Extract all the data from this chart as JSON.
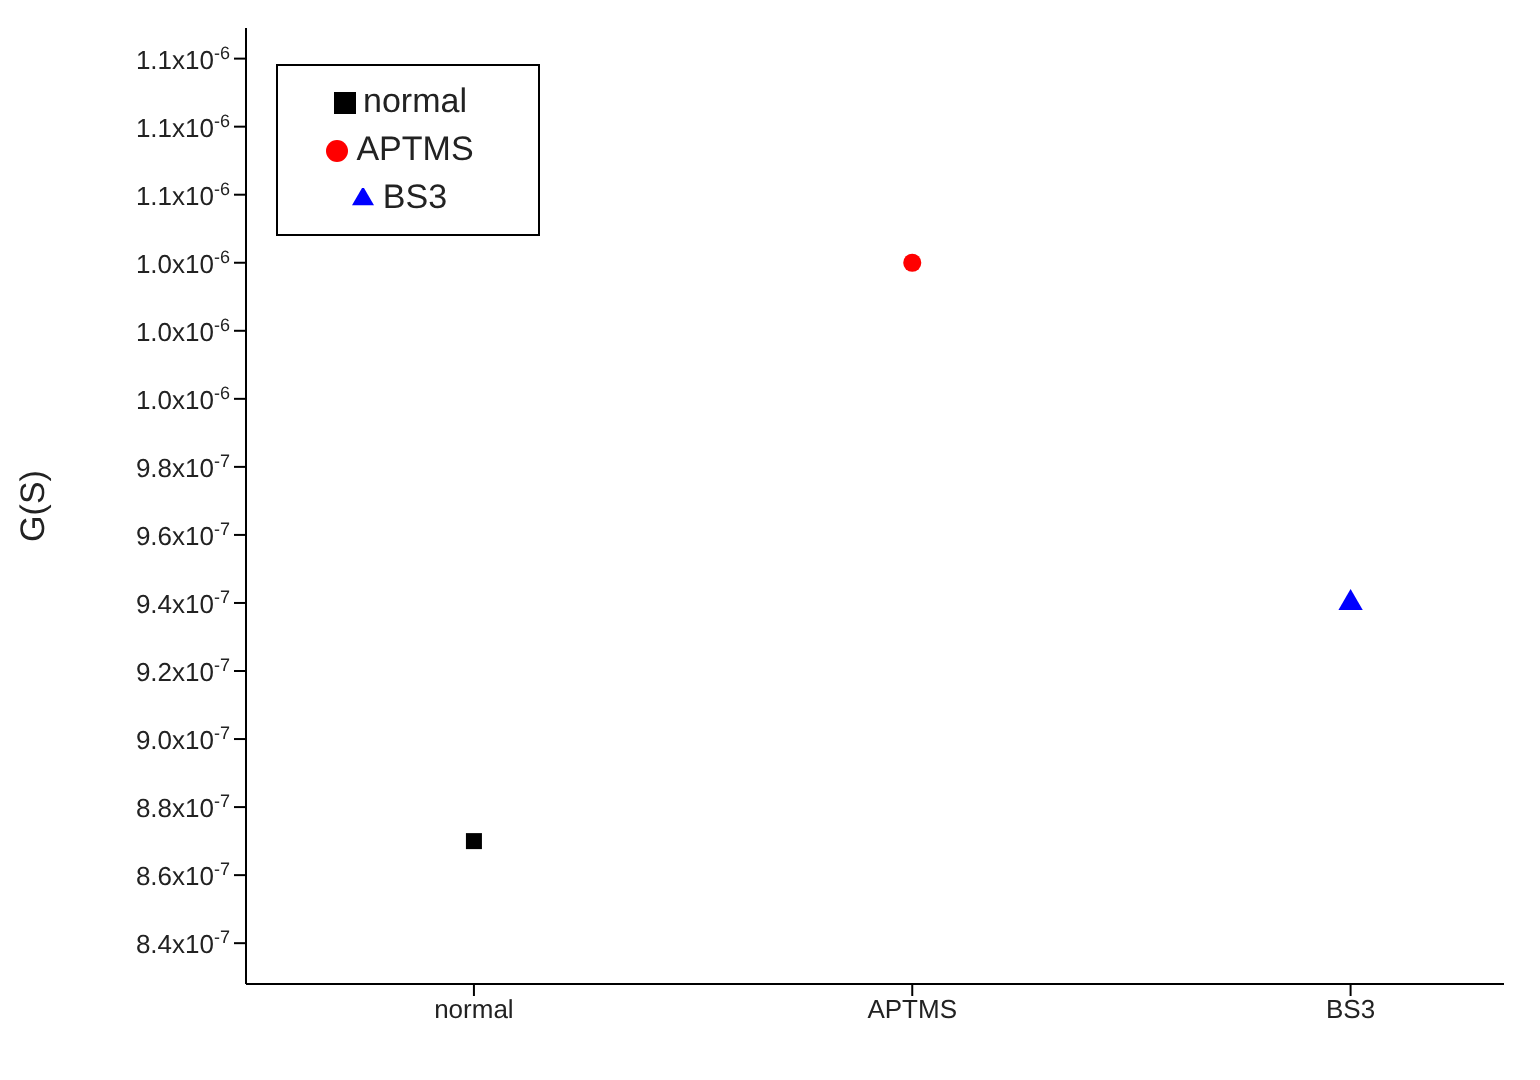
{
  "chart_data": {
    "type": "scatter",
    "ylabel": "G(S)",
    "categories": [
      "normal",
      "APTMS",
      "BS3"
    ],
    "ylim": [
      8.28e-07,
      1.109e-06
    ],
    "yticks": [
      {
        "value": 8.4e-07,
        "label": "8.4x10$^{-7}$"
      },
      {
        "value": 8.6e-07,
        "label": "8.6x10$^{-7}$"
      },
      {
        "value": 8.8e-07,
        "label": "8.8x10$^{-7}$"
      },
      {
        "value": 9e-07,
        "label": "9.0x10$^{-7}$"
      },
      {
        "value": 9.2e-07,
        "label": "9.2x10$^{-7}$"
      },
      {
        "value": 9.4e-07,
        "label": "9.4x10$^{-7}$"
      },
      {
        "value": 9.6e-07,
        "label": "9.6x10$^{-7}$"
      },
      {
        "value": 9.8e-07,
        "label": "9.8x10$^{-7}$"
      },
      {
        "value": 1e-06,
        "label": "1.0x10$^{-6}$"
      },
      {
        "value": 1.02e-06,
        "label": "1.0x10$^{-6}$"
      },
      {
        "value": 1.04e-06,
        "label": "1.0x10$^{-6}$"
      },
      {
        "value": 1.06e-06,
        "label": "1.1x10$^{-6}$"
      },
      {
        "value": 1.08e-06,
        "label": "1.1x10$^{-6}$"
      },
      {
        "value": 1.1e-06,
        "label": "1.1x10$^{-6}$"
      }
    ],
    "legend": "top left",
    "grid": false,
    "series": [
      {
        "name": "normal",
        "color": "#000000",
        "marker": "square",
        "x": [
          "normal"
        ],
        "values": [
          8.7e-07
        ]
      },
      {
        "name": "APTMS",
        "color": "#ff0000",
        "marker": "circle",
        "x": [
          "APTMS"
        ],
        "values": [
          1.04e-06
        ]
      },
      {
        "name": "BS3",
        "color": "#0000ff",
        "marker": "triangle",
        "x": [
          "BS3"
        ],
        "values": [
          9.4e-07
        ]
      }
    ]
  }
}
